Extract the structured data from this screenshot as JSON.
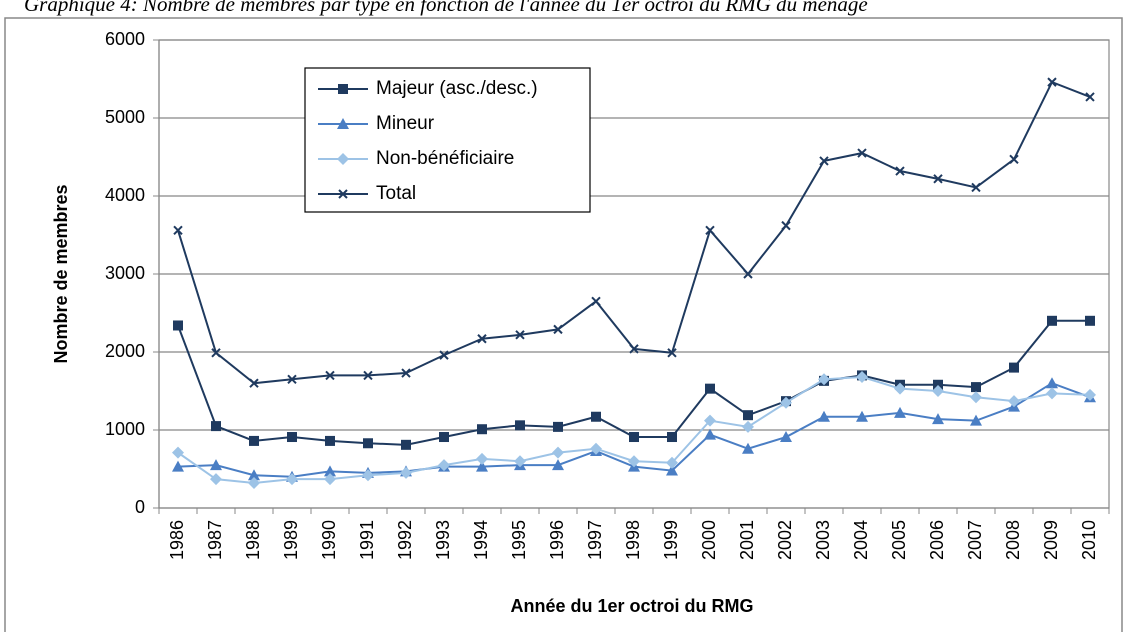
{
  "chart_data": {
    "type": "line",
    "title": "Graphique 4: Nombre de membres par type en fonction de l'année du 1er octroi du RMG du ménage",
    "x_label": "Année du 1er octroi du RMG",
    "y_label": "Nombre de membres",
    "categories": [
      "1986",
      "1987",
      "1988",
      "1989",
      "1990",
      "1991",
      "1992",
      "1993",
      "1994",
      "1995",
      "1996",
      "1997",
      "1998",
      "1999",
      "2000",
      "2001",
      "2002",
      "2003",
      "2004",
      "2005",
      "2006",
      "2007",
      "2008",
      "2009",
      "2010"
    ],
    "series": [
      {
        "name": "Majeur (asc./desc.)",
        "color": "#1f3a5f",
        "marker": "square",
        "values": [
          2340,
          1050,
          860,
          910,
          860,
          830,
          810,
          910,
          1010,
          1060,
          1040,
          1170,
          910,
          910,
          1530,
          1190,
          1370,
          1630,
          1700,
          1580,
          1580,
          1550,
          1800,
          2400,
          2400
        ]
      },
      {
        "name": "Mineur",
        "color": "#4a7ec4",
        "marker": "triangle",
        "values": [
          530,
          550,
          420,
          400,
          470,
          450,
          470,
          530,
          530,
          550,
          550,
          730,
          530,
          480,
          940,
          760,
          910,
          1170,
          1170,
          1220,
          1140,
          1120,
          1300,
          1600,
          1420
        ]
      },
      {
        "name": "Non-bénéficiaire",
        "color": "#9dc3e6",
        "marker": "diamond",
        "values": [
          710,
          370,
          320,
          370,
          370,
          420,
          450,
          550,
          630,
          600,
          710,
          760,
          600,
          580,
          1120,
          1040,
          1350,
          1650,
          1680,
          1530,
          1500,
          1420,
          1370,
          1470,
          1450
        ]
      },
      {
        "name": "Total",
        "color": "#1f3a5f",
        "marker": "x",
        "values": [
          3560,
          1990,
          1600,
          1650,
          1700,
          1700,
          1730,
          1960,
          2170,
          2220,
          2290,
          2650,
          2040,
          1990,
          3560,
          3000,
          3620,
          4450,
          4550,
          4320,
          4220,
          4110,
          4470,
          5460,
          5270
        ]
      }
    ],
    "ylim": [
      0,
      6000
    ],
    "yticks": [
      0,
      1000,
      2000,
      3000,
      4000,
      5000,
      6000
    ],
    "grid": true
  }
}
